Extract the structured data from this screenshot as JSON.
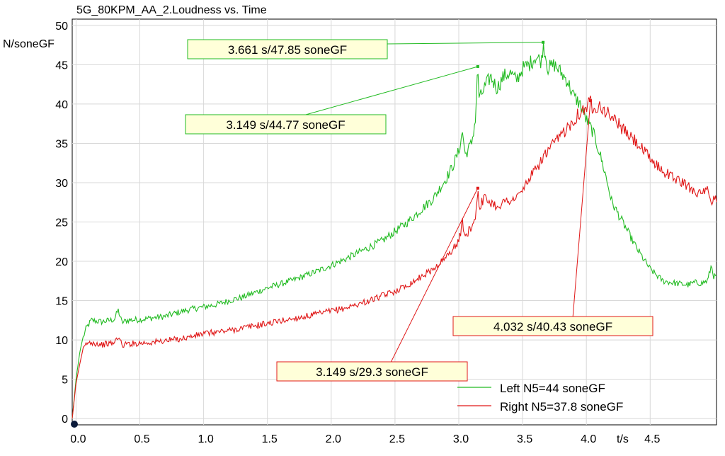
{
  "chart_data": {
    "type": "line",
    "title": "5G_80KPM_AA_2.Loudness vs. Time",
    "ylabel": "N/soneGF",
    "xlabel": "t/s",
    "xlim": [
      -0.03,
      5.02
    ],
    "ylim": [
      -0.8,
      50.8
    ],
    "x_ticks": [
      {
        "value": 0.0,
        "label": "0.0"
      },
      {
        "value": 0.5,
        "label": "0.5"
      },
      {
        "value": 1.0,
        "label": "1.0"
      },
      {
        "value": 1.5,
        "label": "1.5"
      },
      {
        "value": 2.0,
        "label": "2.0"
      },
      {
        "value": 2.5,
        "label": "2.5"
      },
      {
        "value": 3.0,
        "label": "3.0"
      },
      {
        "value": 3.5,
        "label": "3.5"
      },
      {
        "value": 4.0,
        "label": "4.0"
      },
      {
        "value": 4.5,
        "label": "4.5"
      }
    ],
    "y_ticks": [
      0,
      5,
      10,
      15,
      20,
      25,
      30,
      35,
      40,
      45,
      50
    ],
    "grid": true,
    "legend_position": "bottom-right",
    "colors": {
      "left": "#22bb22",
      "right": "#e01818",
      "grid": "#d8d8d8"
    },
    "series": [
      {
        "name": "Left N5=44 soneGF",
        "color": "#22bb22",
        "x": [
          -0.03,
          0.0,
          0.03,
          0.05,
          0.08,
          0.12,
          0.2,
          0.3,
          0.33,
          0.36,
          0.4,
          0.5,
          0.6,
          0.7,
          0.8,
          0.9,
          1.0,
          1.1,
          1.2,
          1.3,
          1.4,
          1.5,
          1.6,
          1.7,
          1.8,
          1.9,
          2.0,
          2.1,
          2.2,
          2.3,
          2.4,
          2.5,
          2.6,
          2.7,
          2.8,
          2.9,
          2.95,
          3.0,
          3.03,
          3.05,
          3.1,
          3.13,
          3.149,
          3.16,
          3.2,
          3.25,
          3.3,
          3.35,
          3.4,
          3.45,
          3.5,
          3.55,
          3.6,
          3.65,
          3.661,
          3.7,
          3.75,
          3.8,
          3.85,
          3.9,
          3.95,
          4.0,
          4.05,
          4.1,
          4.15,
          4.2,
          4.3,
          4.4,
          4.5,
          4.6,
          4.7,
          4.8,
          4.85,
          4.9,
          4.95,
          4.98,
          5.0
        ],
        "y": [
          0.0,
          5.0,
          8.5,
          10.0,
          11.5,
          12.5,
          12.3,
          12.6,
          13.8,
          12.2,
          12.5,
          12.6,
          12.8,
          13.0,
          13.5,
          13.9,
          14.2,
          14.5,
          15.0,
          15.4,
          16.0,
          16.6,
          17.1,
          17.6,
          18.2,
          18.8,
          19.5,
          20.2,
          21.0,
          21.8,
          22.6,
          23.8,
          25.0,
          26.5,
          28.0,
          30.5,
          32.0,
          34.0,
          36.5,
          33.5,
          35.0,
          38.0,
          44.77,
          40.5,
          42.0,
          43.5,
          42.0,
          43.5,
          44.0,
          43.0,
          44.5,
          45.0,
          46.0,
          45.5,
          47.85,
          44.5,
          45.0,
          44.0,
          43.0,
          41.0,
          40.0,
          38.0,
          36.5,
          34.0,
          31.0,
          27.5,
          24.5,
          21.5,
          19.0,
          17.5,
          17.2,
          17.0,
          17.3,
          17.2,
          17.5,
          19.5,
          18.0
        ]
      },
      {
        "name": "Right N5=37.8 soneGF",
        "color": "#e01818",
        "x": [
          -0.03,
          0.0,
          0.03,
          0.05,
          0.08,
          0.12,
          0.2,
          0.3,
          0.33,
          0.36,
          0.4,
          0.5,
          0.6,
          0.7,
          0.8,
          0.9,
          1.0,
          1.1,
          1.2,
          1.3,
          1.4,
          1.5,
          1.6,
          1.7,
          1.8,
          1.9,
          2.0,
          2.1,
          2.2,
          2.3,
          2.4,
          2.5,
          2.6,
          2.7,
          2.8,
          2.9,
          2.95,
          3.0,
          3.03,
          3.05,
          3.1,
          3.13,
          3.149,
          3.16,
          3.2,
          3.25,
          3.3,
          3.35,
          3.4,
          3.45,
          3.5,
          3.55,
          3.6,
          3.65,
          3.7,
          3.75,
          3.8,
          3.85,
          3.9,
          3.95,
          4.0,
          4.032,
          4.05,
          4.1,
          4.15,
          4.2,
          4.3,
          4.4,
          4.5,
          4.6,
          4.7,
          4.8,
          4.85,
          4.9,
          4.95,
          4.98,
          5.0
        ],
        "y": [
          0.0,
          4.5,
          7.0,
          8.5,
          9.5,
          9.7,
          9.4,
          9.6,
          10.5,
          9.3,
          9.5,
          9.6,
          9.7,
          9.9,
          10.1,
          10.4,
          10.8,
          11.0,
          11.2,
          11.5,
          11.8,
          12.1,
          12.4,
          12.7,
          13.0,
          13.3,
          13.7,
          14.0,
          14.5,
          15.0,
          15.6,
          16.2,
          17.0,
          18.0,
          19.0,
          20.5,
          21.5,
          22.5,
          25.0,
          23.0,
          24.5,
          25.5,
          29.3,
          27.0,
          28.0,
          27.5,
          27.0,
          27.5,
          27.8,
          28.0,
          29.0,
          30.5,
          31.5,
          33.0,
          34.0,
          35.0,
          36.0,
          37.0,
          38.0,
          39.0,
          39.5,
          40.43,
          39.5,
          40.0,
          39.0,
          38.5,
          36.5,
          35.0,
          33.0,
          31.5,
          30.5,
          29.5,
          29.0,
          28.5,
          29.0,
          27.0,
          28.0
        ]
      }
    ],
    "annotations": [
      {
        "text": "3.661 s/47.85 soneGF",
        "x": 3.661,
        "y": 47.85,
        "series": "left"
      },
      {
        "text": "3.149 s/44.77 soneGF",
        "x": 3.149,
        "y": 44.77,
        "series": "left"
      },
      {
        "text": "3.149 s/29.3 soneGF",
        "x": 3.149,
        "y": 29.3,
        "series": "right"
      },
      {
        "text": "4.032 s/40.43 soneGF",
        "x": 4.032,
        "y": 40.43,
        "series": "right"
      }
    ]
  }
}
